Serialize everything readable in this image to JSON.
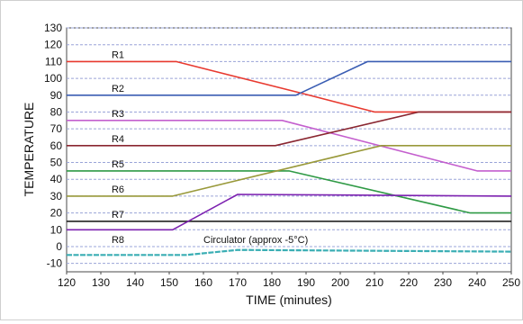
{
  "chart_data": {
    "type": "line",
    "title": "",
    "xlabel": "TIME (minutes)",
    "ylabel": "TEMPERATURE",
    "xlim": [
      120,
      250
    ],
    "ylim": [
      -15,
      130
    ],
    "xticks": [
      120,
      130,
      140,
      150,
      160,
      170,
      180,
      190,
      200,
      210,
      220,
      230,
      240,
      250
    ],
    "yticks": [
      -10,
      0,
      10,
      20,
      30,
      40,
      50,
      60,
      70,
      80,
      90,
      100,
      110,
      120,
      130
    ],
    "grid": {
      "horizontal": true,
      "vertical": false,
      "color": "#9aa4d8",
      "style": "dashed"
    },
    "series": [
      {
        "name": "R1",
        "color": "#e8392f",
        "label_at": [
          135,
          112
        ],
        "x": [
          120,
          152,
          189,
          210,
          250
        ],
        "y": [
          110,
          110,
          91,
          80,
          80
        ]
      },
      {
        "name": "R2",
        "color": "#3a5db3",
        "label_at": [
          135,
          92
        ],
        "x": [
          120,
          150,
          187,
          208,
          250
        ],
        "y": [
          90,
          90,
          90,
          110,
          110
        ]
      },
      {
        "name": "R3",
        "color": "#c45fce",
        "label_at": [
          135,
          77
        ],
        "x": [
          120,
          183,
          240,
          250
        ],
        "y": [
          75,
          75,
          45,
          45
        ]
      },
      {
        "name": "R4",
        "color": "#8a2630",
        "label_at": [
          135,
          62
        ],
        "x": [
          120,
          181,
          223,
          250
        ],
        "y": [
          60,
          60,
          80,
          80
        ]
      },
      {
        "name": "R5",
        "color": "#2f9a45",
        "label_at": [
          135,
          47
        ],
        "x": [
          120,
          185,
          238,
          250
        ],
        "y": [
          45,
          45,
          20,
          20
        ]
      },
      {
        "name": "R6",
        "color": "#99993a",
        "label_at": [
          135,
          32
        ],
        "x": [
          120,
          151,
          212,
          250
        ],
        "y": [
          30,
          30,
          60,
          60
        ]
      },
      {
        "name": "R7",
        "color": "#222222",
        "label_at": [
          135,
          17
        ],
        "x": [
          120,
          250
        ],
        "y": [
          15,
          15
        ]
      },
      {
        "name": "R8",
        "color": "#7d22b0",
        "label_at": [
          135,
          2
        ],
        "x": [
          120,
          151,
          170,
          250
        ],
        "y": [
          10,
          10,
          31,
          30
        ]
      },
      {
        "name": "Circulator (approx -5°C)",
        "color": "#3aaeb4",
        "label_at": [
          160,
          2
        ],
        "x": [
          120,
          155,
          170,
          250
        ],
        "y": [
          -5,
          -5,
          -2,
          -3
        ]
      }
    ]
  }
}
